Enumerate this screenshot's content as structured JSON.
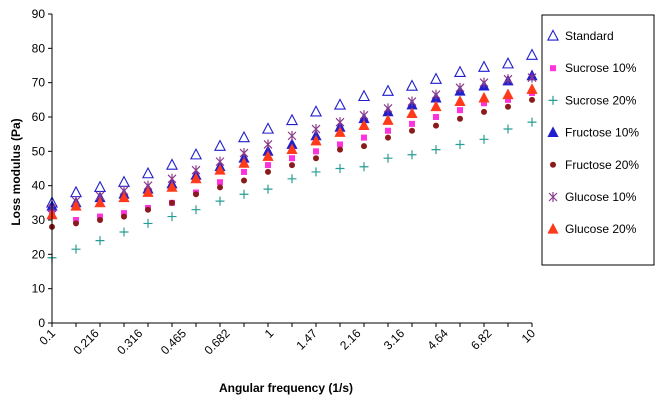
{
  "chart_data": {
    "type": "scatter",
    "xlabel": "Angular frequency  (1/s)",
    "ylabel": "Loss modulus (Pa)",
    "ylim": [
      0,
      90
    ],
    "yticks": [
      0,
      10,
      20,
      30,
      40,
      50,
      60,
      70,
      80,
      90
    ],
    "x_scale": "log",
    "x_ticks": [
      "0.1",
      "0.216",
      "0.316",
      "0.465",
      "0.682",
      "1",
      "1.47",
      "2.16",
      "3.16",
      "4.64",
      "6.82",
      "10"
    ],
    "grid": false,
    "legend_position": "right",
    "x": [
      0.1,
      0.1259,
      0.1585,
      0.1995,
      0.2512,
      0.3162,
      0.3981,
      0.5012,
      0.631,
      0.7943,
      1.0,
      1.259,
      1.585,
      1.995,
      2.512,
      3.162,
      3.981,
      5.012,
      6.31,
      7.943,
      10.0
    ],
    "series": [
      {
        "name": "Standard",
        "marker": "triangle-open",
        "color": "#1f1fd0",
        "values": [
          35,
          38,
          39.5,
          41,
          43.5,
          46,
          49,
          51.5,
          54,
          56.5,
          59,
          61.5,
          63.5,
          66,
          67.5,
          69,
          71,
          73,
          74.5,
          75.5,
          78
        ]
      },
      {
        "name": "Sucrose 10%",
        "marker": "square",
        "color": "#ff33dd",
        "values": [
          32,
          30,
          31,
          32,
          33.5,
          35,
          38,
          41,
          44,
          46,
          48,
          50,
          52,
          54,
          56,
          58,
          60,
          62,
          64,
          65,
          67
        ]
      },
      {
        "name": "Sucrose 20%",
        "marker": "plus",
        "color": "#2a9d94",
        "values": [
          19,
          21.5,
          24,
          26.5,
          29,
          31,
          33,
          35.5,
          37.5,
          39,
          42,
          44,
          45,
          45.5,
          48,
          49,
          50.5,
          52,
          53.5,
          56.5,
          58.5
        ]
      },
      {
        "name": "Fructose 10%",
        "marker": "triangle",
        "color": "#1f1fd0",
        "values": [
          34,
          35,
          36.5,
          37.5,
          39,
          40.5,
          43,
          45.5,
          48,
          50,
          52,
          54.5,
          57,
          59.5,
          61.5,
          63.5,
          65.5,
          67.5,
          69,
          70.5,
          72
        ]
      },
      {
        "name": "Fructose 20%",
        "marker": "circle",
        "color": "#8b1a1a",
        "values": [
          28,
          29,
          30,
          31,
          33,
          35,
          37.5,
          39.5,
          41.5,
          44,
          46,
          48,
          50.5,
          51.5,
          54,
          56,
          57.5,
          59.5,
          61.5,
          63,
          65
        ]
      },
      {
        "name": "Glucose 10%",
        "marker": "star",
        "color": "#8b3c8b",
        "values": [
          33.5,
          35.5,
          37,
          38.5,
          40,
          42,
          44.5,
          47,
          49.5,
          52,
          54.5,
          56.5,
          58.5,
          60.5,
          62.5,
          64.5,
          66.5,
          68.5,
          70,
          71,
          71.5
        ]
      },
      {
        "name": "Glucose 20%",
        "marker": "triangle",
        "color": "#ff3a1a",
        "values": [
          31.5,
          34,
          35,
          36.5,
          38,
          39.5,
          42,
          44.5,
          46.5,
          48.5,
          50.5,
          53,
          55.5,
          57.5,
          59,
          61,
          63,
          64.5,
          65.5,
          66.5,
          68
        ]
      }
    ]
  }
}
